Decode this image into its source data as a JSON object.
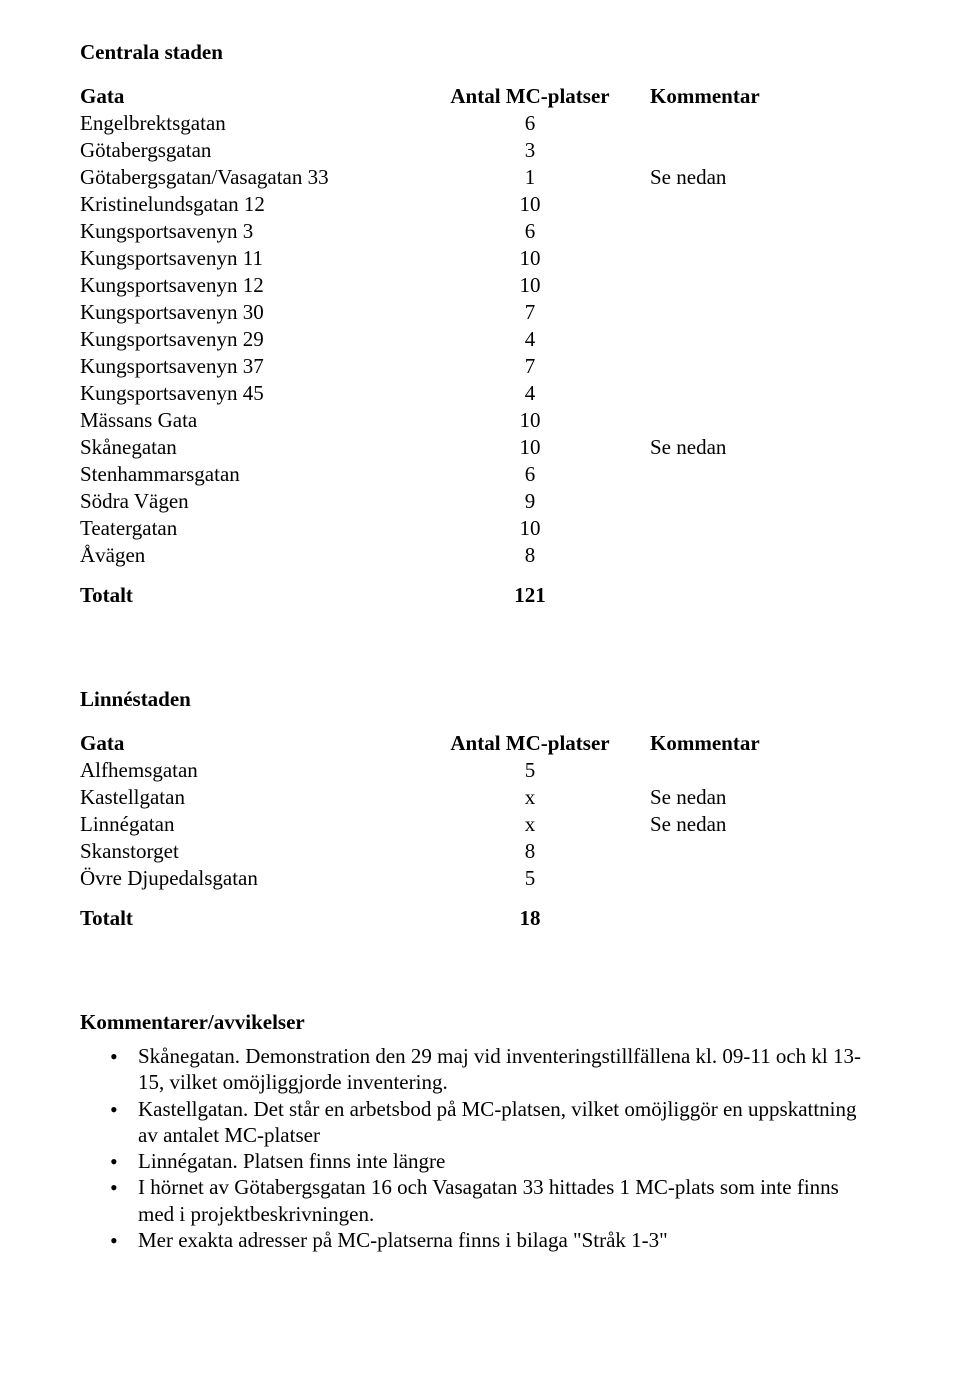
{
  "sections": [
    {
      "title": "Centrala staden",
      "header": {
        "gata": "Gata",
        "antal": "Antal MC-platser",
        "kommentar": "Kommentar"
      },
      "rows": [
        {
          "gata": "Engelbrektsgatan",
          "antal": "6",
          "kommentar": ""
        },
        {
          "gata": "Götabergsgatan",
          "antal": "3",
          "kommentar": ""
        },
        {
          "gata": "Götabergsgatan/Vasagatan 33",
          "antal": "1",
          "kommentar": "Se nedan"
        },
        {
          "gata": "Kristinelundsgatan 12",
          "antal": "10",
          "kommentar": ""
        },
        {
          "gata": "Kungsportsavenyn 3",
          "antal": "6",
          "kommentar": ""
        },
        {
          "gata": "Kungsportsavenyn 11",
          "antal": "10",
          "kommentar": ""
        },
        {
          "gata": "Kungsportsavenyn 12",
          "antal": "10",
          "kommentar": ""
        },
        {
          "gata": "Kungsportsavenyn 30",
          "antal": "7",
          "kommentar": ""
        },
        {
          "gata": "Kungsportsavenyn 29",
          "antal": "4",
          "kommentar": ""
        },
        {
          "gata": "Kungsportsavenyn 37",
          "antal": "7",
          "kommentar": ""
        },
        {
          "gata": "Kungsportsavenyn 45",
          "antal": "4",
          "kommentar": ""
        },
        {
          "gata": "Mässans Gata",
          "antal": "10",
          "kommentar": ""
        },
        {
          "gata": "Skånegatan",
          "antal": "10",
          "kommentar": "Se nedan"
        },
        {
          "gata": "Stenhammarsgatan",
          "antal": "6",
          "kommentar": ""
        },
        {
          "gata": "Södra Vägen",
          "antal": "9",
          "kommentar": ""
        },
        {
          "gata": "Teatergatan",
          "antal": "10",
          "kommentar": ""
        },
        {
          "gata": "Åvägen",
          "antal": "8",
          "kommentar": ""
        }
      ],
      "total": {
        "label": "Totalt",
        "value": "121"
      }
    },
    {
      "title": "Linnéstaden",
      "header": {
        "gata": "Gata",
        "antal": "Antal MC-platser",
        "kommentar": "Kommentar"
      },
      "rows": [
        {
          "gata": "Alfhemsgatan",
          "antal": "5",
          "kommentar": ""
        },
        {
          "gata": "Kastellgatan",
          "antal": "x",
          "kommentar": "Se nedan"
        },
        {
          "gata": "Linnégatan",
          "antal": "x",
          "kommentar": "Se nedan"
        },
        {
          "gata": "Skanstorget",
          "antal": "8",
          "kommentar": ""
        },
        {
          "gata": "Övre Djupedalsgatan",
          "antal": "5",
          "kommentar": ""
        }
      ],
      "total": {
        "label": "Totalt",
        "value": "18"
      }
    }
  ],
  "comments": {
    "title": "Kommentarer/avvikelser",
    "items": [
      "Skånegatan. Demonstration den 29 maj vid inventeringstillfällena kl. 09-11 och kl 13-15, vilket omöjliggjorde inventering.",
      "Kastellgatan. Det står en arbetsbod på MC-platsen, vilket omöjliggör en uppskattning av antalet MC-platser",
      "Linnégatan. Platsen finns inte längre",
      "I hörnet av Götabergsgatan 16 och Vasagatan 33 hittades 1 MC-plats som inte finns med i projektbeskrivningen.",
      "Mer exakta adresser på MC-platserna finns i bilaga \"Stråk 1-3\""
    ]
  }
}
